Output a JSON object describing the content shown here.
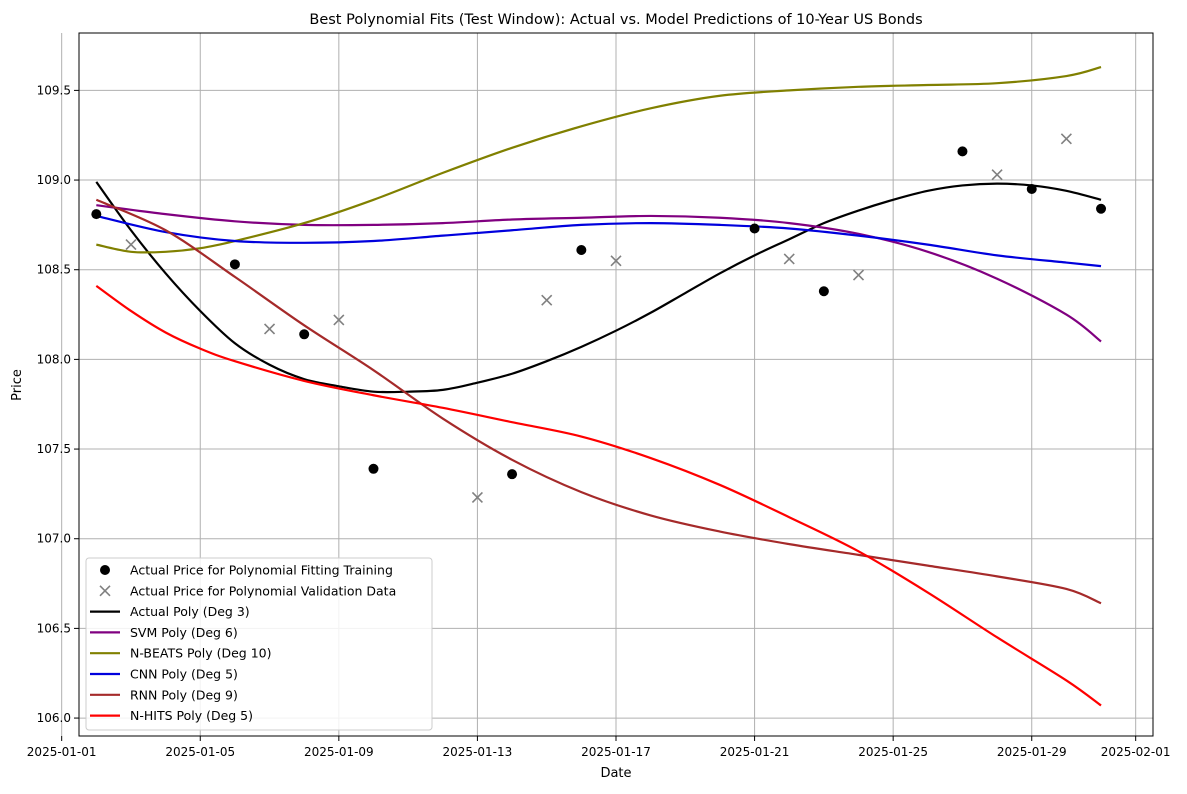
{
  "chart_data": {
    "type": "line",
    "title": "Best Polynomial Fits (Test Window): Actual vs. Model Predictions of 10-Year US Bonds",
    "xlabel": "Date",
    "ylabel": "Price",
    "xlim": [
      "2025-01-01T12:00",
      "2025-02-01T12:00"
    ],
    "ylim": [
      105.9,
      109.82
    ],
    "x_ticks": [
      "2025-01-01",
      "2025-01-05",
      "2025-01-09",
      "2025-01-13",
      "2025-01-17",
      "2025-01-21",
      "2025-01-25",
      "2025-01-29",
      "2025-02-01"
    ],
    "y_ticks": [
      106.0,
      106.5,
      107.0,
      107.5,
      108.0,
      108.5,
      109.0,
      109.5
    ],
    "grid": true,
    "legend_position": "lower-left",
    "scatter": [
      {
        "name": "Actual Price for Polynomial Fitting Training",
        "marker": "circle",
        "color": "#000000",
        "points": [
          [
            "2025-01-02",
            108.81
          ],
          [
            "2025-01-06",
            108.53
          ],
          [
            "2025-01-08",
            108.14
          ],
          [
            "2025-01-10",
            107.39
          ],
          [
            "2025-01-14",
            107.36
          ],
          [
            "2025-01-16",
            108.61
          ],
          [
            "2025-01-21",
            108.73
          ],
          [
            "2025-01-23",
            108.38
          ],
          [
            "2025-01-27",
            109.16
          ],
          [
            "2025-01-29",
            108.95
          ],
          [
            "2025-01-31",
            108.84
          ]
        ]
      },
      {
        "name": "Actual Price for Polynomial Validation Data",
        "marker": "x",
        "color": "#808080",
        "points": [
          [
            "2025-01-03",
            108.64
          ],
          [
            "2025-01-07",
            108.17
          ],
          [
            "2025-01-09",
            108.22
          ],
          [
            "2025-01-13",
            107.23
          ],
          [
            "2025-01-15",
            108.33
          ],
          [
            "2025-01-17",
            108.55
          ],
          [
            "2025-01-22",
            108.56
          ],
          [
            "2025-01-24",
            108.47
          ],
          [
            "2025-01-28",
            109.03
          ],
          [
            "2025-01-30",
            109.23
          ]
        ]
      }
    ],
    "series": [
      {
        "name": "Actual Poly (Deg 3)",
        "color": "#000000",
        "points": [
          [
            "2025-01-02",
            108.99
          ],
          [
            "2025-01-03",
            108.72
          ],
          [
            "2025-01-04",
            108.48
          ],
          [
            "2025-01-05",
            108.27
          ],
          [
            "2025-01-06",
            108.09
          ],
          [
            "2025-01-07",
            107.97
          ],
          [
            "2025-01-08",
            107.89
          ],
          [
            "2025-01-09",
            107.85
          ],
          [
            "2025-01-10",
            107.82
          ],
          [
            "2025-01-11",
            107.82
          ],
          [
            "2025-01-12",
            107.83
          ],
          [
            "2025-01-13",
            107.87
          ],
          [
            "2025-01-14",
            107.92
          ],
          [
            "2025-01-15",
            107.99
          ],
          [
            "2025-01-16",
            108.07
          ],
          [
            "2025-01-17",
            108.16
          ],
          [
            "2025-01-18",
            108.26
          ],
          [
            "2025-01-19",
            108.37
          ],
          [
            "2025-01-20",
            108.48
          ],
          [
            "2025-01-21",
            108.58
          ],
          [
            "2025-01-22",
            108.67
          ],
          [
            "2025-01-23",
            108.76
          ],
          [
            "2025-01-24",
            108.83
          ],
          [
            "2025-01-25",
            108.89
          ],
          [
            "2025-01-26",
            108.94
          ],
          [
            "2025-01-27",
            108.97
          ],
          [
            "2025-01-28",
            108.98
          ],
          [
            "2025-01-29",
            108.97
          ],
          [
            "2025-01-30",
            108.94
          ],
          [
            "2025-01-31",
            108.89
          ]
        ]
      },
      {
        "name": "SVM Poly (Deg 6)",
        "color": "#800080",
        "points": [
          [
            "2025-01-02",
            108.86
          ],
          [
            "2025-01-04",
            108.81
          ],
          [
            "2025-01-06",
            108.77
          ],
          [
            "2025-01-08",
            108.75
          ],
          [
            "2025-01-10",
            108.75
          ],
          [
            "2025-01-12",
            108.76
          ],
          [
            "2025-01-14",
            108.78
          ],
          [
            "2025-01-16",
            108.79
          ],
          [
            "2025-01-18",
            108.8
          ],
          [
            "2025-01-20",
            108.79
          ],
          [
            "2025-01-22",
            108.76
          ],
          [
            "2025-01-24",
            108.7
          ],
          [
            "2025-01-26",
            108.6
          ],
          [
            "2025-01-28",
            108.45
          ],
          [
            "2025-01-30",
            108.25
          ],
          [
            "2025-01-31",
            108.1
          ]
        ]
      },
      {
        "name": "N-BEATS Poly (Deg 10)",
        "color": "#808000",
        "points": [
          [
            "2025-01-02",
            108.64
          ],
          [
            "2025-01-03",
            108.6
          ],
          [
            "2025-01-04",
            108.6
          ],
          [
            "2025-01-05",
            108.62
          ],
          [
            "2025-01-06",
            108.66
          ],
          [
            "2025-01-08",
            108.76
          ],
          [
            "2025-01-10",
            108.89
          ],
          [
            "2025-01-12",
            109.04
          ],
          [
            "2025-01-14",
            109.18
          ],
          [
            "2025-01-16",
            109.3
          ],
          [
            "2025-01-18",
            109.4
          ],
          [
            "2025-01-20",
            109.47
          ],
          [
            "2025-01-22",
            109.5
          ],
          [
            "2025-01-24",
            109.52
          ],
          [
            "2025-01-26",
            109.53
          ],
          [
            "2025-01-28",
            109.54
          ],
          [
            "2025-01-30",
            109.58
          ],
          [
            "2025-01-31",
            109.63
          ]
        ]
      },
      {
        "name": "CNN Poly (Deg 5)",
        "color": "#0000dd",
        "points": [
          [
            "2025-01-02",
            108.8
          ],
          [
            "2025-01-04",
            108.71
          ],
          [
            "2025-01-06",
            108.66
          ],
          [
            "2025-01-08",
            108.65
          ],
          [
            "2025-01-10",
            108.66
          ],
          [
            "2025-01-12",
            108.69
          ],
          [
            "2025-01-14",
            108.72
          ],
          [
            "2025-01-16",
            108.75
          ],
          [
            "2025-01-18",
            108.76
          ],
          [
            "2025-01-20",
            108.75
          ],
          [
            "2025-01-22",
            108.73
          ],
          [
            "2025-01-24",
            108.69
          ],
          [
            "2025-01-26",
            108.64
          ],
          [
            "2025-01-28",
            108.58
          ],
          [
            "2025-01-30",
            108.54
          ],
          [
            "2025-01-31",
            108.52
          ]
        ]
      },
      {
        "name": "RNN Poly (Deg 9)",
        "color": "#a52a2a",
        "points": [
          [
            "2025-01-02",
            108.89
          ],
          [
            "2025-01-04",
            108.72
          ],
          [
            "2025-01-06",
            108.46
          ],
          [
            "2025-01-08",
            108.19
          ],
          [
            "2025-01-10",
            107.94
          ],
          [
            "2025-01-12",
            107.67
          ],
          [
            "2025-01-14",
            107.44
          ],
          [
            "2025-01-16",
            107.26
          ],
          [
            "2025-01-18",
            107.13
          ],
          [
            "2025-01-20",
            107.04
          ],
          [
            "2025-01-22",
            106.97
          ],
          [
            "2025-01-24",
            106.91
          ],
          [
            "2025-01-26",
            106.85
          ],
          [
            "2025-01-28",
            106.79
          ],
          [
            "2025-01-30",
            106.72
          ],
          [
            "2025-01-31",
            106.64
          ]
        ]
      },
      {
        "name": "N-HITS Poly (Deg 5)",
        "color": "#ff0000",
        "points": [
          [
            "2025-01-02",
            108.41
          ],
          [
            "2025-01-03",
            108.27
          ],
          [
            "2025-01-04",
            108.15
          ],
          [
            "2025-01-05",
            108.06
          ],
          [
            "2025-01-06",
            107.99
          ],
          [
            "2025-01-08",
            107.88
          ],
          [
            "2025-01-10",
            107.8
          ],
          [
            "2025-01-12",
            107.73
          ],
          [
            "2025-01-14",
            107.65
          ],
          [
            "2025-01-16",
            107.57
          ],
          [
            "2025-01-18",
            107.45
          ],
          [
            "2025-01-20",
            107.3
          ],
          [
            "2025-01-22",
            107.12
          ],
          [
            "2025-01-24",
            106.93
          ],
          [
            "2025-01-26",
            106.7
          ],
          [
            "2025-01-28",
            106.45
          ],
          [
            "2025-01-30",
            106.21
          ],
          [
            "2025-01-31",
            106.07
          ]
        ]
      }
    ]
  }
}
